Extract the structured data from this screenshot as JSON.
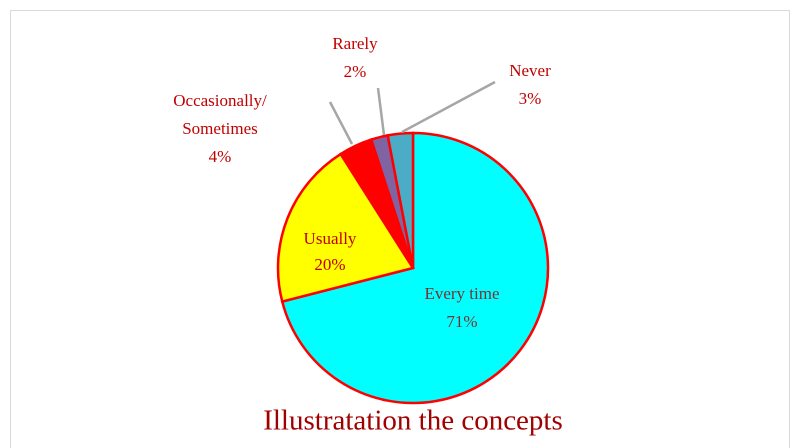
{
  "chart_data": {
    "type": "pie",
    "title": "Illustratation the concepts",
    "categories": [
      "Every time",
      "Usually",
      "Occasionally/\nSometimes",
      "Rarely",
      "Never"
    ],
    "values": [
      71,
      20,
      4,
      2,
      3
    ],
    "value_labels": [
      "71%",
      "20%",
      "4%",
      "2%",
      "3%"
    ],
    "colors": [
      "#00ffff",
      "#ffff00",
      "#ff0000",
      "#8064a2",
      "#4bacc6"
    ]
  }
}
